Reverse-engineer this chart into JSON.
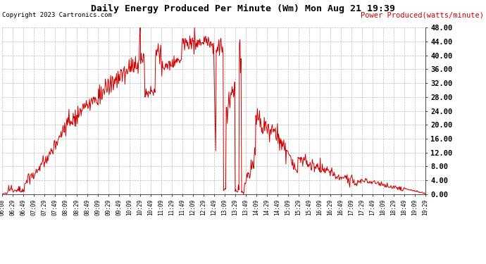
{
  "title": "Daily Energy Produced Per Minute (Wm) Mon Aug 21 19:39",
  "copyright": "Copyright 2023 Cartronics.com",
  "legend_label": "Power Produced(watts/minute)",
  "line_color": "#cc0000",
  "bg_color": "#ffffff",
  "grid_color": "#bbbbbb",
  "ylim": [
    0.0,
    48.0
  ],
  "yticks": [
    0.0,
    4.0,
    8.0,
    12.0,
    16.0,
    20.0,
    24.0,
    28.0,
    32.0,
    36.0,
    40.0,
    44.0,
    48.0
  ],
  "xtick_labels": [
    "06:08",
    "06:29",
    "06:49",
    "07:09",
    "07:29",
    "07:49",
    "08:09",
    "08:29",
    "08:49",
    "09:09",
    "09:29",
    "09:49",
    "10:09",
    "10:29",
    "10:49",
    "11:09",
    "11:29",
    "11:49",
    "12:09",
    "12:29",
    "12:49",
    "13:09",
    "13:29",
    "13:49",
    "14:09",
    "14:29",
    "14:49",
    "15:09",
    "15:29",
    "15:49",
    "16:09",
    "16:29",
    "16:49",
    "17:09",
    "17:29",
    "17:49",
    "18:09",
    "18:29",
    "18:49",
    "19:09",
    "19:29"
  ],
  "title_fontsize": 9.5,
  "copyright_fontsize": 6.5,
  "legend_fontsize": 7.5,
  "ytick_fontsize": 7.5,
  "xtick_fontsize": 5.5
}
